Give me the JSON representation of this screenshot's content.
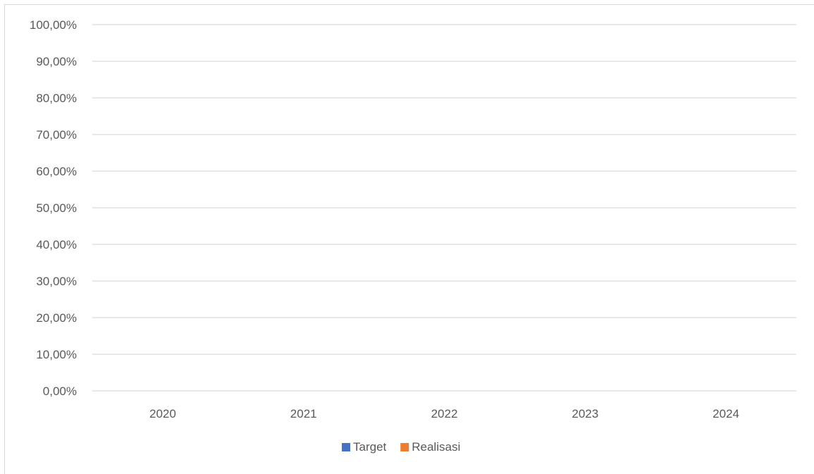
{
  "chart_data": {
    "type": "bar",
    "categories": [
      "2020",
      "2021",
      "2022",
      "2023",
      "2024"
    ],
    "series": [
      {
        "name": "Target",
        "color": "#4472c4",
        "values": [
          0,
          0,
          0,
          0,
          0
        ]
      },
      {
        "name": "Realisasi",
        "color": "#ed7d31",
        "values": [
          0,
          0,
          0,
          0,
          0
        ]
      }
    ],
    "y_ticks": [
      "0,00%",
      "10,00%",
      "20,00%",
      "30,00%",
      "40,00%",
      "50,00%",
      "60,00%",
      "70,00%",
      "80,00%",
      "90,00%",
      "100,00%"
    ],
    "ylim": [
      0,
      100
    ],
    "grid": true,
    "legend_position": "bottom",
    "title": "",
    "xlabel": "",
    "ylabel": ""
  },
  "colors": {
    "gridline": "#d9d9d9",
    "text": "#595959"
  }
}
